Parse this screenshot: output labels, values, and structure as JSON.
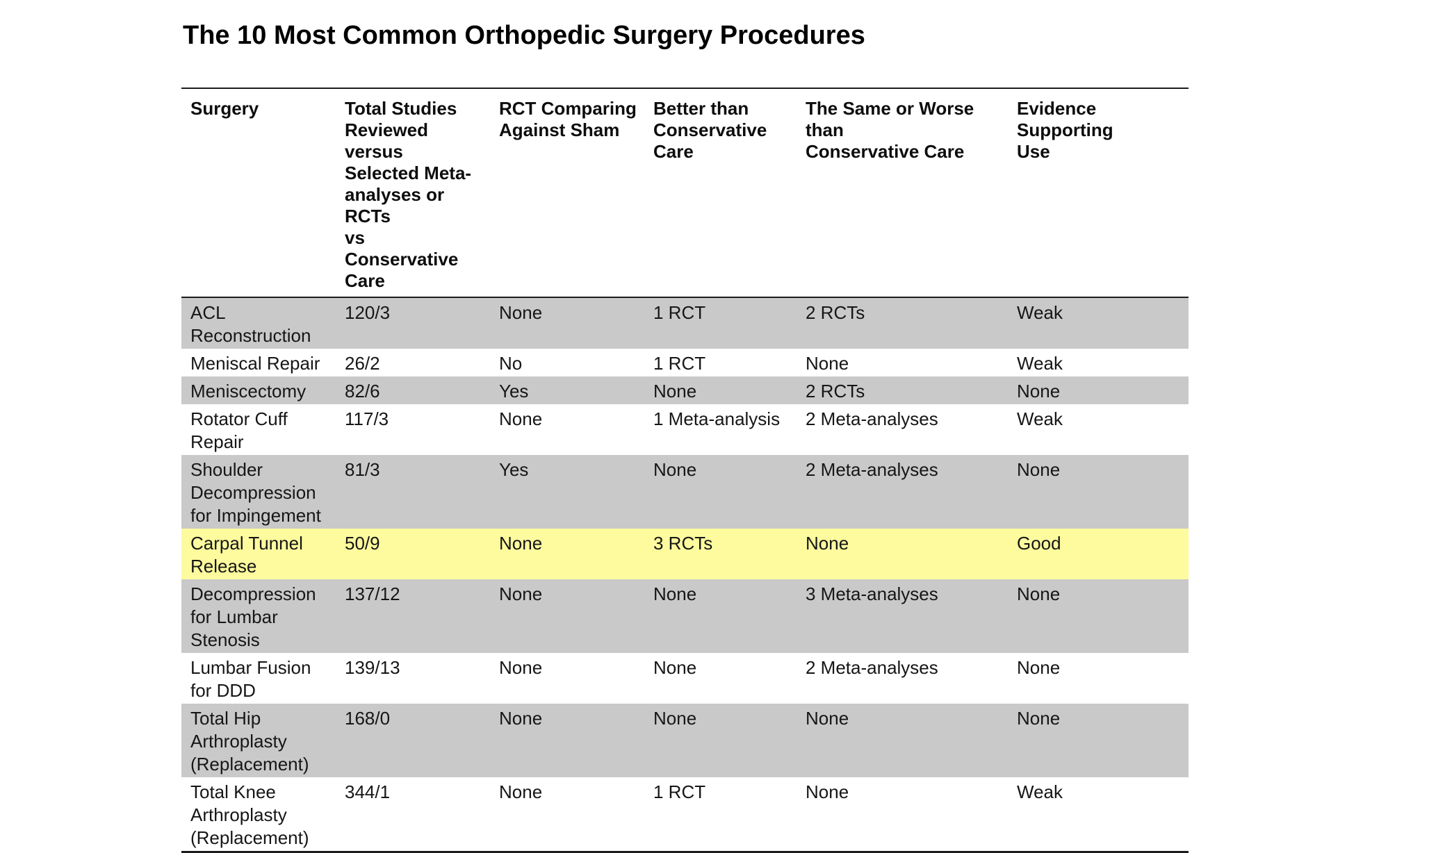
{
  "page": {
    "title": "The 10 Most Common Orthopedic Surgery Procedures"
  },
  "colors": {
    "row_gray": "#C9C9C9",
    "row_white": "#FFFFFF",
    "row_highlight": "#FDFB9E",
    "border": "#1B1B1B",
    "text": "#111111"
  },
  "table": {
    "columns": [
      {
        "key": "surgery",
        "label": "Surgery"
      },
      {
        "key": "total_studies",
        "label": "Total Studies\nReviewed versus\nSelected Meta-\nanalyses or RCTs\nvs Conservative\nCare"
      },
      {
        "key": "rct_sham",
        "label": "RCT Comparing\nAgainst Sham"
      },
      {
        "key": "better_than_conservative",
        "label": "Better than\nConservative\nCare"
      },
      {
        "key": "same_or_worse",
        "label": "The Same or Worse than\nConservative Care"
      },
      {
        "key": "evidence",
        "label": "Evidence Supporting\nUse"
      }
    ],
    "rows": [
      {
        "surgery": "ACL\nReconstruction",
        "total_studies": "120/3",
        "rct_sham": "None",
        "better_than_conservative": "1 RCT",
        "same_or_worse": "2 RCTs",
        "evidence": "Weak",
        "variant": "gray"
      },
      {
        "surgery": "Meniscal Repair",
        "total_studies": "26/2",
        "rct_sham": "No",
        "better_than_conservative": "1 RCT",
        "same_or_worse": "None",
        "evidence": "Weak",
        "variant": "white"
      },
      {
        "surgery": "Meniscectomy",
        "total_studies": "82/6",
        "rct_sham": "Yes",
        "better_than_conservative": "None",
        "same_or_worse": "2 RCTs",
        "evidence": "None",
        "variant": "gray"
      },
      {
        "surgery": "Rotator Cuff\nRepair",
        "total_studies": "117/3",
        "rct_sham": "None",
        "better_than_conservative": "1 Meta-analysis",
        "same_or_worse": "2 Meta-analyses",
        "evidence": "Weak",
        "variant": "white"
      },
      {
        "surgery": "Shoulder\nDecompression\nfor Impingement",
        "total_studies": "81/3",
        "rct_sham": "Yes",
        "better_than_conservative": "None",
        "same_or_worse": "2 Meta-analyses",
        "evidence": "None",
        "variant": "gray"
      },
      {
        "surgery": "Carpal Tunnel\nRelease",
        "total_studies": "50/9",
        "rct_sham": "None",
        "better_than_conservative": "3 RCTs",
        "same_or_worse": "None",
        "evidence": "Good",
        "variant": "highlight"
      },
      {
        "surgery": "Decompression\nfor Lumbar\nStenosis",
        "total_studies": "137/12",
        "rct_sham": "None",
        "better_than_conservative": "None",
        "same_or_worse": "3 Meta-analyses",
        "evidence": "None",
        "variant": "gray"
      },
      {
        "surgery": "Lumbar Fusion\nfor DDD",
        "total_studies": "139/13",
        "rct_sham": "None",
        "better_than_conservative": "None",
        "same_or_worse": "2 Meta-analyses",
        "evidence": "None",
        "variant": "white"
      },
      {
        "surgery": "Total Hip\nArthroplasty\n(Replacement)",
        "total_studies": "168/0",
        "rct_sham": "None",
        "better_than_conservative": "None",
        "same_or_worse": "None",
        "evidence": "None",
        "variant": "gray"
      },
      {
        "surgery": "Total Knee\nArthroplasty\n(Replacement)",
        "total_studies": "344/1",
        "rct_sham": "None",
        "better_than_conservative": "1 RCT",
        "same_or_worse": "None",
        "evidence": "Weak",
        "variant": "white"
      }
    ]
  }
}
